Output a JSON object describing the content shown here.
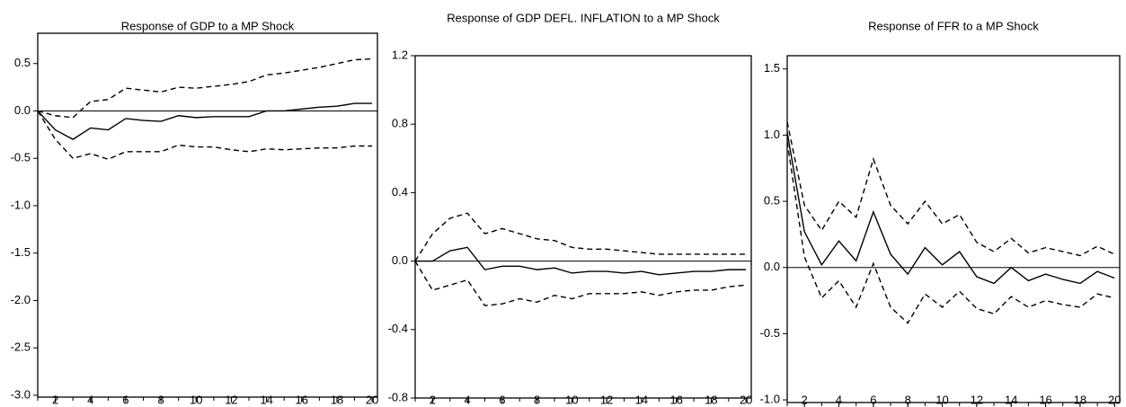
{
  "chart_data": [
    {
      "type": "line",
      "title": "Response of GDP to a MP Shock",
      "x": [
        1,
        2,
        3,
        4,
        5,
        6,
        7,
        8,
        9,
        10,
        11,
        12,
        13,
        14,
        15,
        16,
        17,
        18,
        19,
        20
      ],
      "series": [
        {
          "color": "#000000",
          "dashed": false,
          "values": [
            0,
            -0.2,
            -0.3,
            -0.18,
            -0.2,
            -0.08,
            -0.1,
            -0.11,
            -0.05,
            -0.07,
            -0.06,
            -0.06,
            -0.06,
            0.0,
            0.0,
            0.02,
            0.04,
            0.05,
            0.08,
            0.08
          ]
        },
        {
          "color": "#000000",
          "dashed": true,
          "values": [
            0,
            -0.05,
            -0.07,
            0.1,
            0.12,
            0.24,
            0.22,
            0.2,
            0.25,
            0.24,
            0.26,
            0.28,
            0.31,
            0.38,
            0.4,
            0.43,
            0.46,
            0.5,
            0.54,
            0.55
          ]
        },
        {
          "color": "#000000",
          "dashed": true,
          "values": [
            0,
            -0.3,
            -0.5,
            -0.45,
            -0.51,
            -0.43,
            -0.43,
            -0.43,
            -0.36,
            -0.38,
            -0.38,
            -0.41,
            -0.43,
            -0.4,
            -0.41,
            -0.4,
            -0.39,
            -0.39,
            -0.37,
            -0.37
          ]
        }
      ],
      "xlim": [
        1,
        20.3
      ],
      "xticks": [
        2,
        4,
        6,
        8,
        10,
        12,
        14,
        16,
        18,
        20
      ],
      "ylim": [
        -3.02,
        0.82
      ],
      "yticks": [
        0.5,
        {
          "value": 0,
          "label": "0.0"
        },
        -0.5,
        {
          "value": -1,
          "label": "-1.0"
        },
        -1.5,
        {
          "value": -2,
          "label": "-2.0"
        },
        -2.5,
        {
          "value": -3,
          "label": "-3.0"
        }
      ],
      "zeroline": true
    },
    {
      "type": "line",
      "title": "Response of GDP DEFL. INFLATION to a MP Shock",
      "x": [
        1,
        2,
        3,
        4,
        5,
        6,
        7,
        8,
        9,
        10,
        11,
        12,
        13,
        14,
        15,
        16,
        17,
        18,
        19,
        20
      ],
      "series": [
        {
          "color": "#000000",
          "dashed": false,
          "values": [
            0,
            0,
            0.06,
            0.08,
            -0.05,
            -0.03,
            -0.03,
            -0.05,
            -0.04,
            -0.07,
            -0.06,
            -0.06,
            -0.07,
            -0.06,
            -0.08,
            -0.07,
            -0.06,
            -0.06,
            -0.05,
            -0.05
          ]
        },
        {
          "color": "#000000",
          "dashed": true,
          "values": [
            0,
            0.16,
            0.25,
            0.28,
            0.16,
            0.19,
            0.16,
            0.13,
            0.12,
            0.08,
            0.07,
            0.07,
            0.06,
            0.05,
            0.04,
            0.04,
            0.04,
            0.04,
            0.04,
            0.04
          ]
        },
        {
          "color": "#000000",
          "dashed": true,
          "values": [
            0,
            -0.17,
            -0.14,
            -0.11,
            -0.26,
            -0.25,
            -0.22,
            -0.24,
            -0.2,
            -0.22,
            -0.19,
            -0.19,
            -0.19,
            -0.18,
            -0.2,
            -0.18,
            -0.17,
            -0.17,
            -0.15,
            -0.14
          ]
        }
      ],
      "xlim": [
        1,
        20.3
      ],
      "xticks": [
        2,
        4,
        6,
        8,
        10,
        12,
        14,
        16,
        18,
        20
      ],
      "ylim": [
        -0.8,
        1.2
      ],
      "yticks": [
        1.2,
        0.8,
        0.4,
        {
          "value": 0,
          "label": "0.0"
        },
        -0.4,
        -0.8
      ],
      "zeroline": true
    },
    {
      "type": "line",
      "title": "Response of FFR to a MP Shock",
      "x": [
        1,
        2,
        3,
        4,
        5,
        6,
        7,
        8,
        9,
        10,
        11,
        12,
        13,
        14,
        15,
        16,
        17,
        18,
        19,
        20
      ],
      "series": [
        {
          "color": "#000000",
          "dashed": false,
          "values": [
            1.02,
            0.27,
            0.02,
            0.2,
            0.05,
            0.42,
            0.1,
            -0.05,
            0.15,
            0.02,
            0.12,
            -0.07,
            -0.12,
            0.0,
            -0.1,
            -0.05,
            -0.09,
            -0.12,
            -0.03,
            -0.08
          ]
        },
        {
          "color": "#000000",
          "dashed": true,
          "values": [
            1.1,
            0.47,
            0.28,
            0.5,
            0.38,
            0.82,
            0.47,
            0.33,
            0.5,
            0.33,
            0.4,
            0.19,
            0.12,
            0.22,
            0.11,
            0.15,
            0.12,
            0.09,
            0.16,
            0.1
          ]
        },
        {
          "color": "#000000",
          "dashed": true,
          "values": [
            0.95,
            0.08,
            -0.23,
            -0.1,
            -0.3,
            0.03,
            -0.3,
            -0.42,
            -0.2,
            -0.3,
            -0.18,
            -0.31,
            -0.35,
            -0.22,
            -0.3,
            -0.25,
            -0.28,
            -0.3,
            -0.2,
            -0.23
          ]
        }
      ],
      "xlim": [
        1,
        20.3
      ],
      "xticks": [
        2,
        4,
        6,
        8,
        10,
        12,
        14,
        16,
        18,
        20
      ],
      "ylim": [
        -1.02,
        1.6
      ],
      "yticks": [
        1.5,
        {
          "value": 1,
          "label": "1.0"
        },
        0.5,
        {
          "value": 0,
          "label": "0.0"
        },
        -0.5,
        {
          "value": -1,
          "label": "-1.0"
        }
      ],
      "zeroline": true
    }
  ]
}
